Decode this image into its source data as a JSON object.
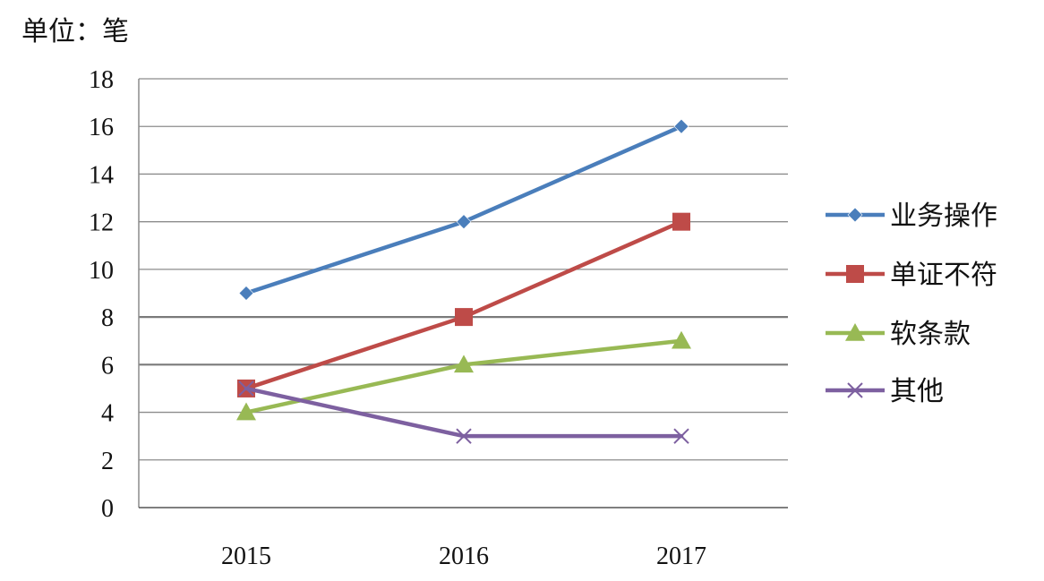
{
  "chart_data": {
    "type": "line",
    "unit_label": "单位：笔",
    "x": [
      "2015",
      "2016",
      "2017"
    ],
    "y_ticks": [
      "0",
      "2",
      "4",
      "6",
      "8",
      "10",
      "12",
      "14",
      "16",
      "18"
    ],
    "ylim": [
      0,
      18
    ],
    "grid": true,
    "legend_position": "right",
    "series": [
      {
        "name": "业务操作",
        "values": [
          9,
          12,
          16
        ],
        "color": "#4a7ebb",
        "marker": "diamond"
      },
      {
        "name": "单证不符",
        "values": [
          5,
          8,
          12
        ],
        "color": "#be4b48",
        "marker": "square"
      },
      {
        "name": "软条款",
        "values": [
          4,
          6,
          7
        ],
        "color": "#98b954",
        "marker": "triangle"
      },
      {
        "name": "其他",
        "values": [
          5,
          3,
          3
        ],
        "color": "#7d60a0",
        "marker": "x"
      }
    ]
  }
}
